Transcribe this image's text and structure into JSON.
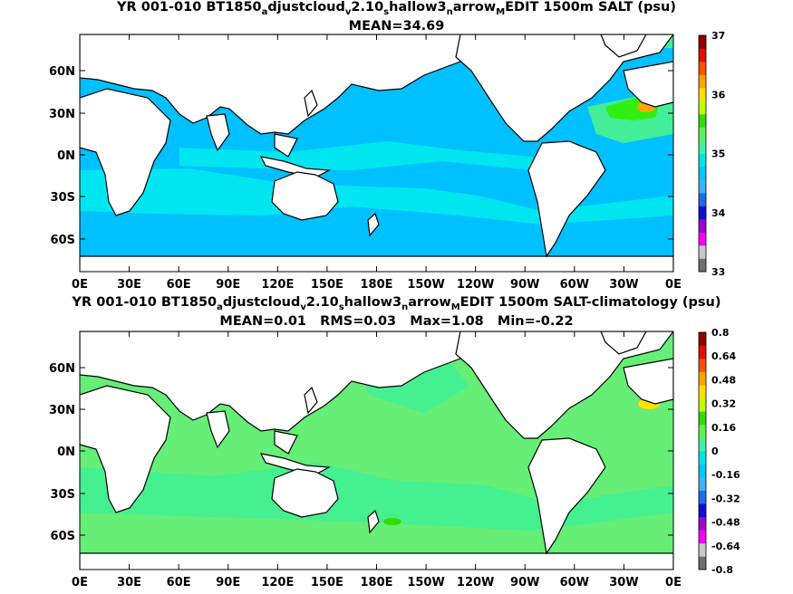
{
  "panels": [
    {
      "title_parts": [
        "YR 001-010 BT1850",
        "a",
        "djustcloud",
        "v",
        "2.10",
        "s",
        "hallow3",
        "n",
        "arrow",
        "M",
        "EDIT 1500m SALT (psu)"
      ],
      "stats": "MEAN=34.69",
      "colorbar_labels": [
        "37",
        "36",
        "35",
        "34",
        "33"
      ],
      "colorbar_values": [
        37,
        36,
        35,
        34,
        33
      ]
    },
    {
      "title_parts": [
        "YR 001-010 BT1850",
        "a",
        "djustcloud",
        "v",
        "2.10",
        "s",
        "hallow3",
        "n",
        "arrow",
        "M",
        "EDIT 1500m SALT-climatology (psu)"
      ],
      "stats": "MEAN=0.01   RMS=0.03   Max=1.08   Min=-0.22",
      "colorbar_labels": [
        "0.8",
        "0.64",
        "0.48",
        "0.32",
        "0.16",
        "0",
        "-0.16",
        "-0.32",
        "-0.48",
        "-0.64",
        "-0.8"
      ],
      "colorbar_values": [
        0.8,
        0.64,
        0.48,
        0.32,
        0.16,
        0,
        -0.16,
        -0.32,
        -0.48,
        -0.64,
        -0.8
      ]
    }
  ],
  "lon_labels": [
    "0E",
    "30E",
    "60E",
    "90E",
    "120E",
    "150E",
    "180E",
    "150W",
    "120W",
    "90W",
    "60W",
    "30W",
    "0E"
  ],
  "lat_labels": [
    "60N",
    "30N",
    "0N",
    "30S",
    "60S"
  ],
  "colorbar_colors": [
    "#6e6e6e",
    "#c8c8c8",
    "#ff00ff",
    "#a000d0",
    "#1010d0",
    "#1e6ee6",
    "#3cb4ff",
    "#00c8ff",
    "#00e6e6",
    "#44f0a0",
    "#66ee55",
    "#33dd00",
    "#c0ff00",
    "#ffe000",
    "#ffa500",
    "#ff5000",
    "#e01000",
    "#900000"
  ],
  "colors": {
    "top_ocean": "#00c0ff",
    "top_band": "#00e6f0",
    "top_coast": "#44ee99",
    "high_salt": "#33ee11",
    "diff_ocean": "#66ee77",
    "diff_green": "#44f090",
    "land": "#ffffff"
  }
}
